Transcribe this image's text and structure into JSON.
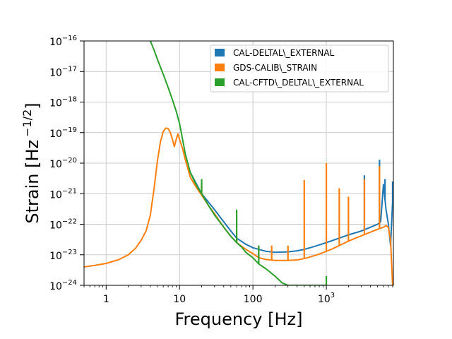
{
  "chart_data": {
    "type": "line",
    "xlabel": "Frequency [Hz]",
    "ylabel": "Strain [Hz",
    "ylabel_exponent": "−1/2",
    "ylabel_close": "]",
    "x_scale": "log",
    "y_scale": "log",
    "xlim": [
      0.5,
      8192
    ],
    "ylim": [
      1e-24,
      1e-16
    ],
    "grid": true,
    "legend_position": "top-right",
    "x_ticks": [
      {
        "value": 1,
        "base": "1",
        "exp": ""
      },
      {
        "value": 10,
        "base": "10",
        "exp": ""
      },
      {
        "value": 100,
        "base": "100",
        "exp": ""
      },
      {
        "value": 1000,
        "base": "10",
        "exp": "3"
      }
    ],
    "y_ticks": [
      {
        "value": 1e-24,
        "exp": "−24"
      },
      {
        "value": 1e-23,
        "exp": "−23"
      },
      {
        "value": 1e-22,
        "exp": "−22"
      },
      {
        "value": 1e-21,
        "exp": "−21"
      },
      {
        "value": 1e-20,
        "exp": "−20"
      },
      {
        "value": 1e-19,
        "exp": "−19"
      },
      {
        "value": 1e-18,
        "exp": "−18"
      },
      {
        "value": 1e-17,
        "exp": "−17"
      },
      {
        "value": 1e-16,
        "exp": "−16"
      }
    ],
    "series": [
      {
        "name": "CAL-DELTAL\\_EXTERNAL",
        "color": "#1f77b4",
        "x": [
          14,
          20,
          30,
          40,
          50,
          60,
          80,
          100,
          150,
          200,
          300,
          400,
          500,
          600,
          800,
          1000,
          1500,
          2000,
          3000,
          4000,
          5000,
          5500,
          6000,
          6500,
          7000,
          7500,
          8192
        ],
        "y": [
          5e-21,
          1e-21,
          3e-22,
          1.2e-22,
          6e-23,
          3.5e-23,
          2.2e-23,
          1.7e-23,
          1.3e-23,
          1.2e-23,
          1.25e-23,
          1.35e-23,
          1.5e-23,
          1.7e-23,
          2.1e-23,
          2.5e-23,
          3.5e-23,
          4.5e-23,
          6e-23,
          8e-23,
          1e-22,
          1.2e-22,
          2e-21,
          3e-22,
          1e-22,
          2e-23,
          2e-21
        ],
        "peaks": [
          {
            "x": 5300,
            "y": 1.3e-20
          },
          {
            "x": 3300,
            "y": 4e-21
          },
          {
            "x": 6300,
            "y": 3e-21
          },
          {
            "x": 8000,
            "y": 2.5e-21
          }
        ]
      },
      {
        "name": "GDS-CALIB\\_STRAIN",
        "color": "#ff7f0e",
        "x": [
          0.5,
          0.7,
          1,
          1.5,
          2,
          2.5,
          3,
          3.5,
          4,
          4.5,
          5,
          5.5,
          6,
          6.5,
          7,
          7.5,
          8,
          8.5,
          9,
          9.5,
          10,
          11,
          12,
          14,
          16,
          18,
          20,
          25,
          30,
          40,
          50,
          60,
          80,
          100,
          120,
          150,
          200,
          300,
          400,
          500,
          600,
          700,
          800,
          1000,
          1200,
          1500,
          2000,
          2500,
          3000,
          4000,
          5000,
          6000,
          6500,
          7000,
          7500,
          8000
        ],
        "y": [
          4e-24,
          4.5e-24,
          5.2e-24,
          7e-24,
          1e-23,
          1.6e-23,
          3e-23,
          6e-23,
          2e-22,
          1.5e-21,
          1.2e-20,
          5e-20,
          1.1e-19,
          1.4e-19,
          1.35e-19,
          1e-19,
          6e-20,
          3.5e-20,
          6e-20,
          9e-20,
          6e-20,
          3e-20,
          1.3e-20,
          3.5e-21,
          2e-21,
          1.3e-21,
          9e-22,
          4e-22,
          2.2e-22,
          8e-23,
          4e-23,
          2.5e-23,
          1.5e-23,
          1.1e-23,
          8e-24,
          7e-24,
          6.5e-24,
          6.5e-24,
          6.8e-24,
          7.5e-24,
          8.5e-24,
          9.5e-24,
          1.05e-23,
          1.3e-23,
          1.55e-23,
          2e-23,
          2.8e-23,
          3.5e-23,
          4.2e-23,
          5.5e-23,
          6.8e-23,
          8e-23,
          9e-23,
          8e-23,
          3e-23,
          1e-24
        ],
        "peaks": [
          {
            "x": 20,
            "y": 2.2e-21
          },
          {
            "x": 60,
            "y": 4e-23
          },
          {
            "x": 120,
            "y": 2e-23
          },
          {
            "x": 180,
            "y": 2e-23
          },
          {
            "x": 300,
            "y": 2e-23
          },
          {
            "x": 500,
            "y": 2.8e-21
          },
          {
            "x": 1000,
            "y": 1e-20
          },
          {
            "x": 1500,
            "y": 1.5e-21
          },
          {
            "x": 2000,
            "y": 8e-22
          },
          {
            "x": 3300,
            "y": 3e-21
          },
          {
            "x": 5300,
            "y": 8e-21
          }
        ]
      },
      {
        "name": "CAL-CFTD\\_DELTAL\\_EXTERNAL",
        "color": "#2ca02c",
        "x": [
          4,
          4.5,
          5,
          6,
          7,
          8,
          9,
          10,
          11,
          12,
          14,
          16,
          18,
          20,
          25,
          30,
          40,
          50,
          60,
          70,
          80,
          100,
          120,
          150,
          200,
          250,
          300,
          400,
          500,
          600,
          800,
          1000
        ],
        "y": [
          1e-16,
          5e-17,
          2.5e-17,
          8e-18,
          3e-18,
          1.2e-18,
          5e-19,
          2e-19,
          6e-20,
          2e-20,
          5e-21,
          2.5e-21,
          1.5e-21,
          1e-21,
          4e-22,
          2e-22,
          8e-23,
          4e-23,
          2.5e-23,
          1.8e-23,
          1.2e-23,
          8e-24,
          5e-24,
          3.5e-24,
          2e-24,
          1.2e-24,
          1e-24,
          1e-24,
          1e-24,
          1e-24,
          1e-24,
          1e-24
        ],
        "peaks": [
          {
            "x": 20,
            "y": 3e-21
          },
          {
            "x": 60,
            "y": 3e-22
          },
          {
            "x": 120,
            "y": 2e-23
          },
          {
            "x": 1000,
            "y": 2e-24
          }
        ]
      }
    ]
  }
}
